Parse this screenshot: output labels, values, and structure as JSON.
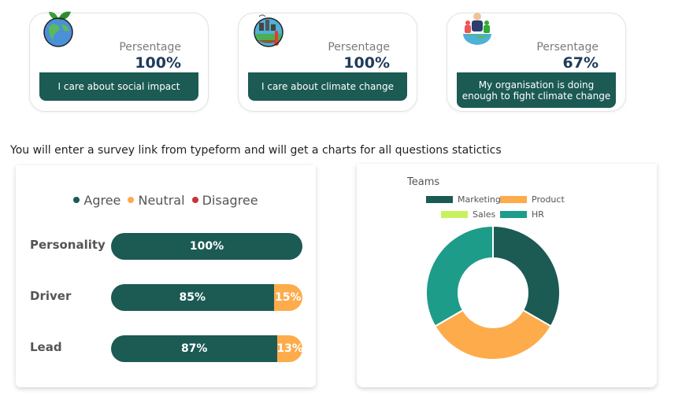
{
  "cards": [
    {
      "icon": "earth-plant-icon",
      "pct_label": "Persentage",
      "pct_value": "100%",
      "caption": "I care about social impact"
    },
    {
      "icon": "climate-city-icon",
      "pct_label": "Persentage",
      "pct_value": "100%",
      "caption": "I care about climate change"
    },
    {
      "icon": "people-globe-icon",
      "pct_label": "Persentage",
      "pct_value": "67%",
      "caption": "My organisation is doing enough to fight climate change"
    }
  ],
  "intro_text": "You will enter a survey link from typeform and will get a charts for all questions statictics",
  "colors": {
    "agree": "#1c5a54",
    "neutral": "#fdab4b",
    "disagree": "#c7343a",
    "sales": "#c9f15f",
    "hr": "#1e9c8a"
  },
  "chart_data": [
    {
      "type": "bar",
      "orientation": "horizontal",
      "stacked": true,
      "legend": [
        "Agree",
        "Neutral",
        "Disagree"
      ],
      "categories": [
        "Personality",
        "Driver",
        "Lead"
      ],
      "series": [
        {
          "name": "Agree",
          "values": [
            100,
            85,
            87
          ],
          "labels": [
            "100%",
            "85%",
            "87%"
          ]
        },
        {
          "name": "Neutral",
          "values": [
            0,
            15,
            13
          ],
          "labels": [
            "",
            "15%",
            "13%"
          ]
        },
        {
          "name": "Disagree",
          "values": [
            0,
            0,
            0
          ],
          "labels": [
            "",
            "",
            ""
          ]
        }
      ]
    },
    {
      "type": "pie",
      "donut": true,
      "title": "Teams",
      "labels": [
        "Marketing",
        "Product",
        "Sales",
        "HR"
      ],
      "values": [
        33.3,
        33.3,
        0,
        33.3
      ],
      "colors": [
        "#1c5a54",
        "#fdab4b",
        "#c9f15f",
        "#1e9c8a"
      ],
      "legend_position": "top"
    }
  ]
}
